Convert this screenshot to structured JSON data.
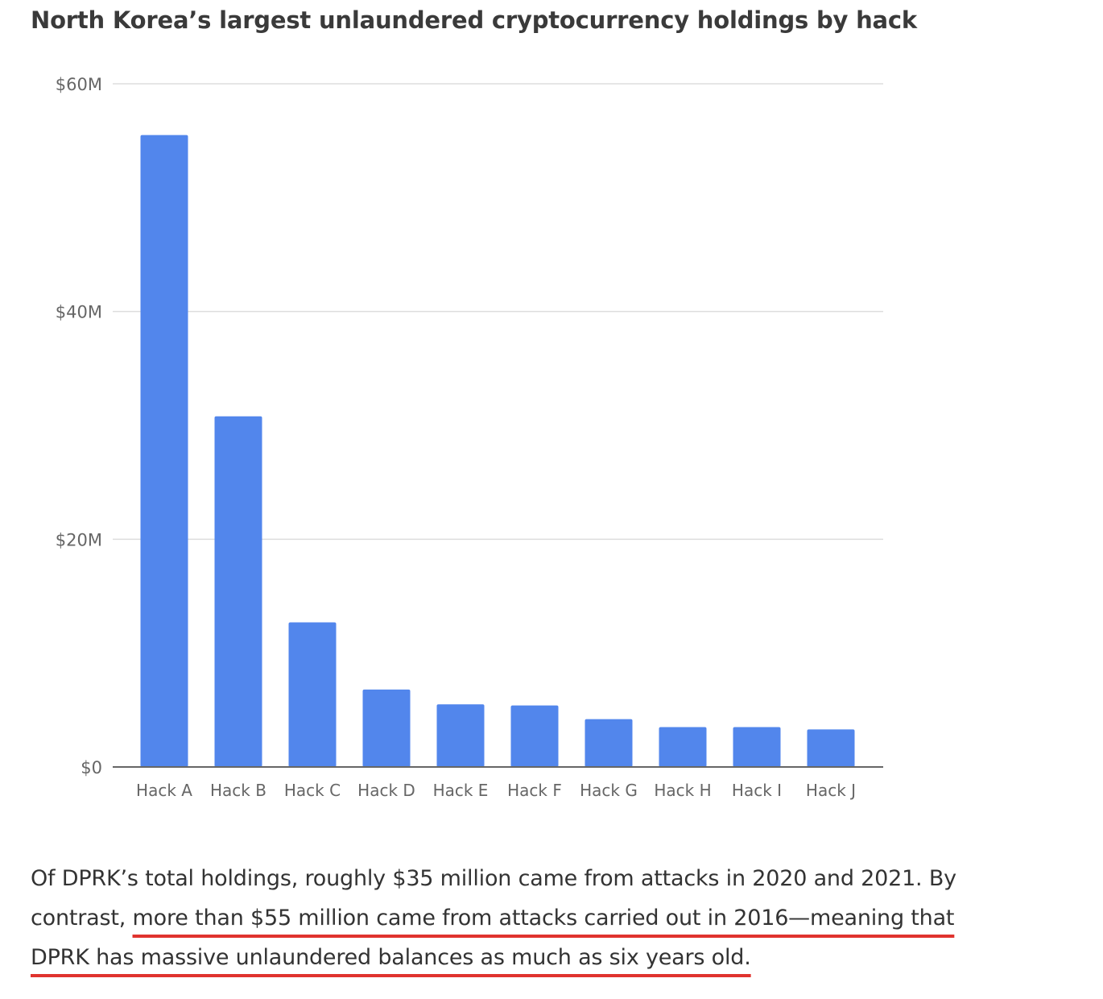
{
  "chart_data": {
    "type": "bar",
    "title": "North Korea’s largest unlaundered cryptocurrency holdings by hack",
    "categories": [
      "Hack A",
      "Hack B",
      "Hack C",
      "Hack D",
      "Hack E",
      "Hack F",
      "Hack G",
      "Hack H",
      "Hack I",
      "Hack J"
    ],
    "values": [
      55.5,
      30.8,
      12.7,
      6.8,
      5.5,
      5.4,
      4.2,
      3.5,
      3.5,
      3.3
    ],
    "value_unit": "$M",
    "ylim": [
      0,
      60
    ],
    "yticks": [
      0,
      20,
      40,
      60
    ],
    "ytick_labels": [
      "$0",
      "$20M",
      "$40M",
      "$60M"
    ],
    "xlabel": "",
    "ylabel": "",
    "grid": true,
    "colors": {
      "bar": "#5286ec",
      "grid": "#dddddd",
      "axis": "#666666",
      "tick_label": "#666666"
    }
  },
  "caption": {
    "line1": "Of DPRK’s total holdings, roughly $35 million came from attacks in 2020 and 2021. By",
    "line2_plain": "contrast, ",
    "line2_underlined": "more than $55 million came from attacks carried out in 2016—meaning that",
    "line3_underlined": "DPRK has massive unlaundered balances as much as six years old.",
    "underline_color": "#e0332e"
  }
}
